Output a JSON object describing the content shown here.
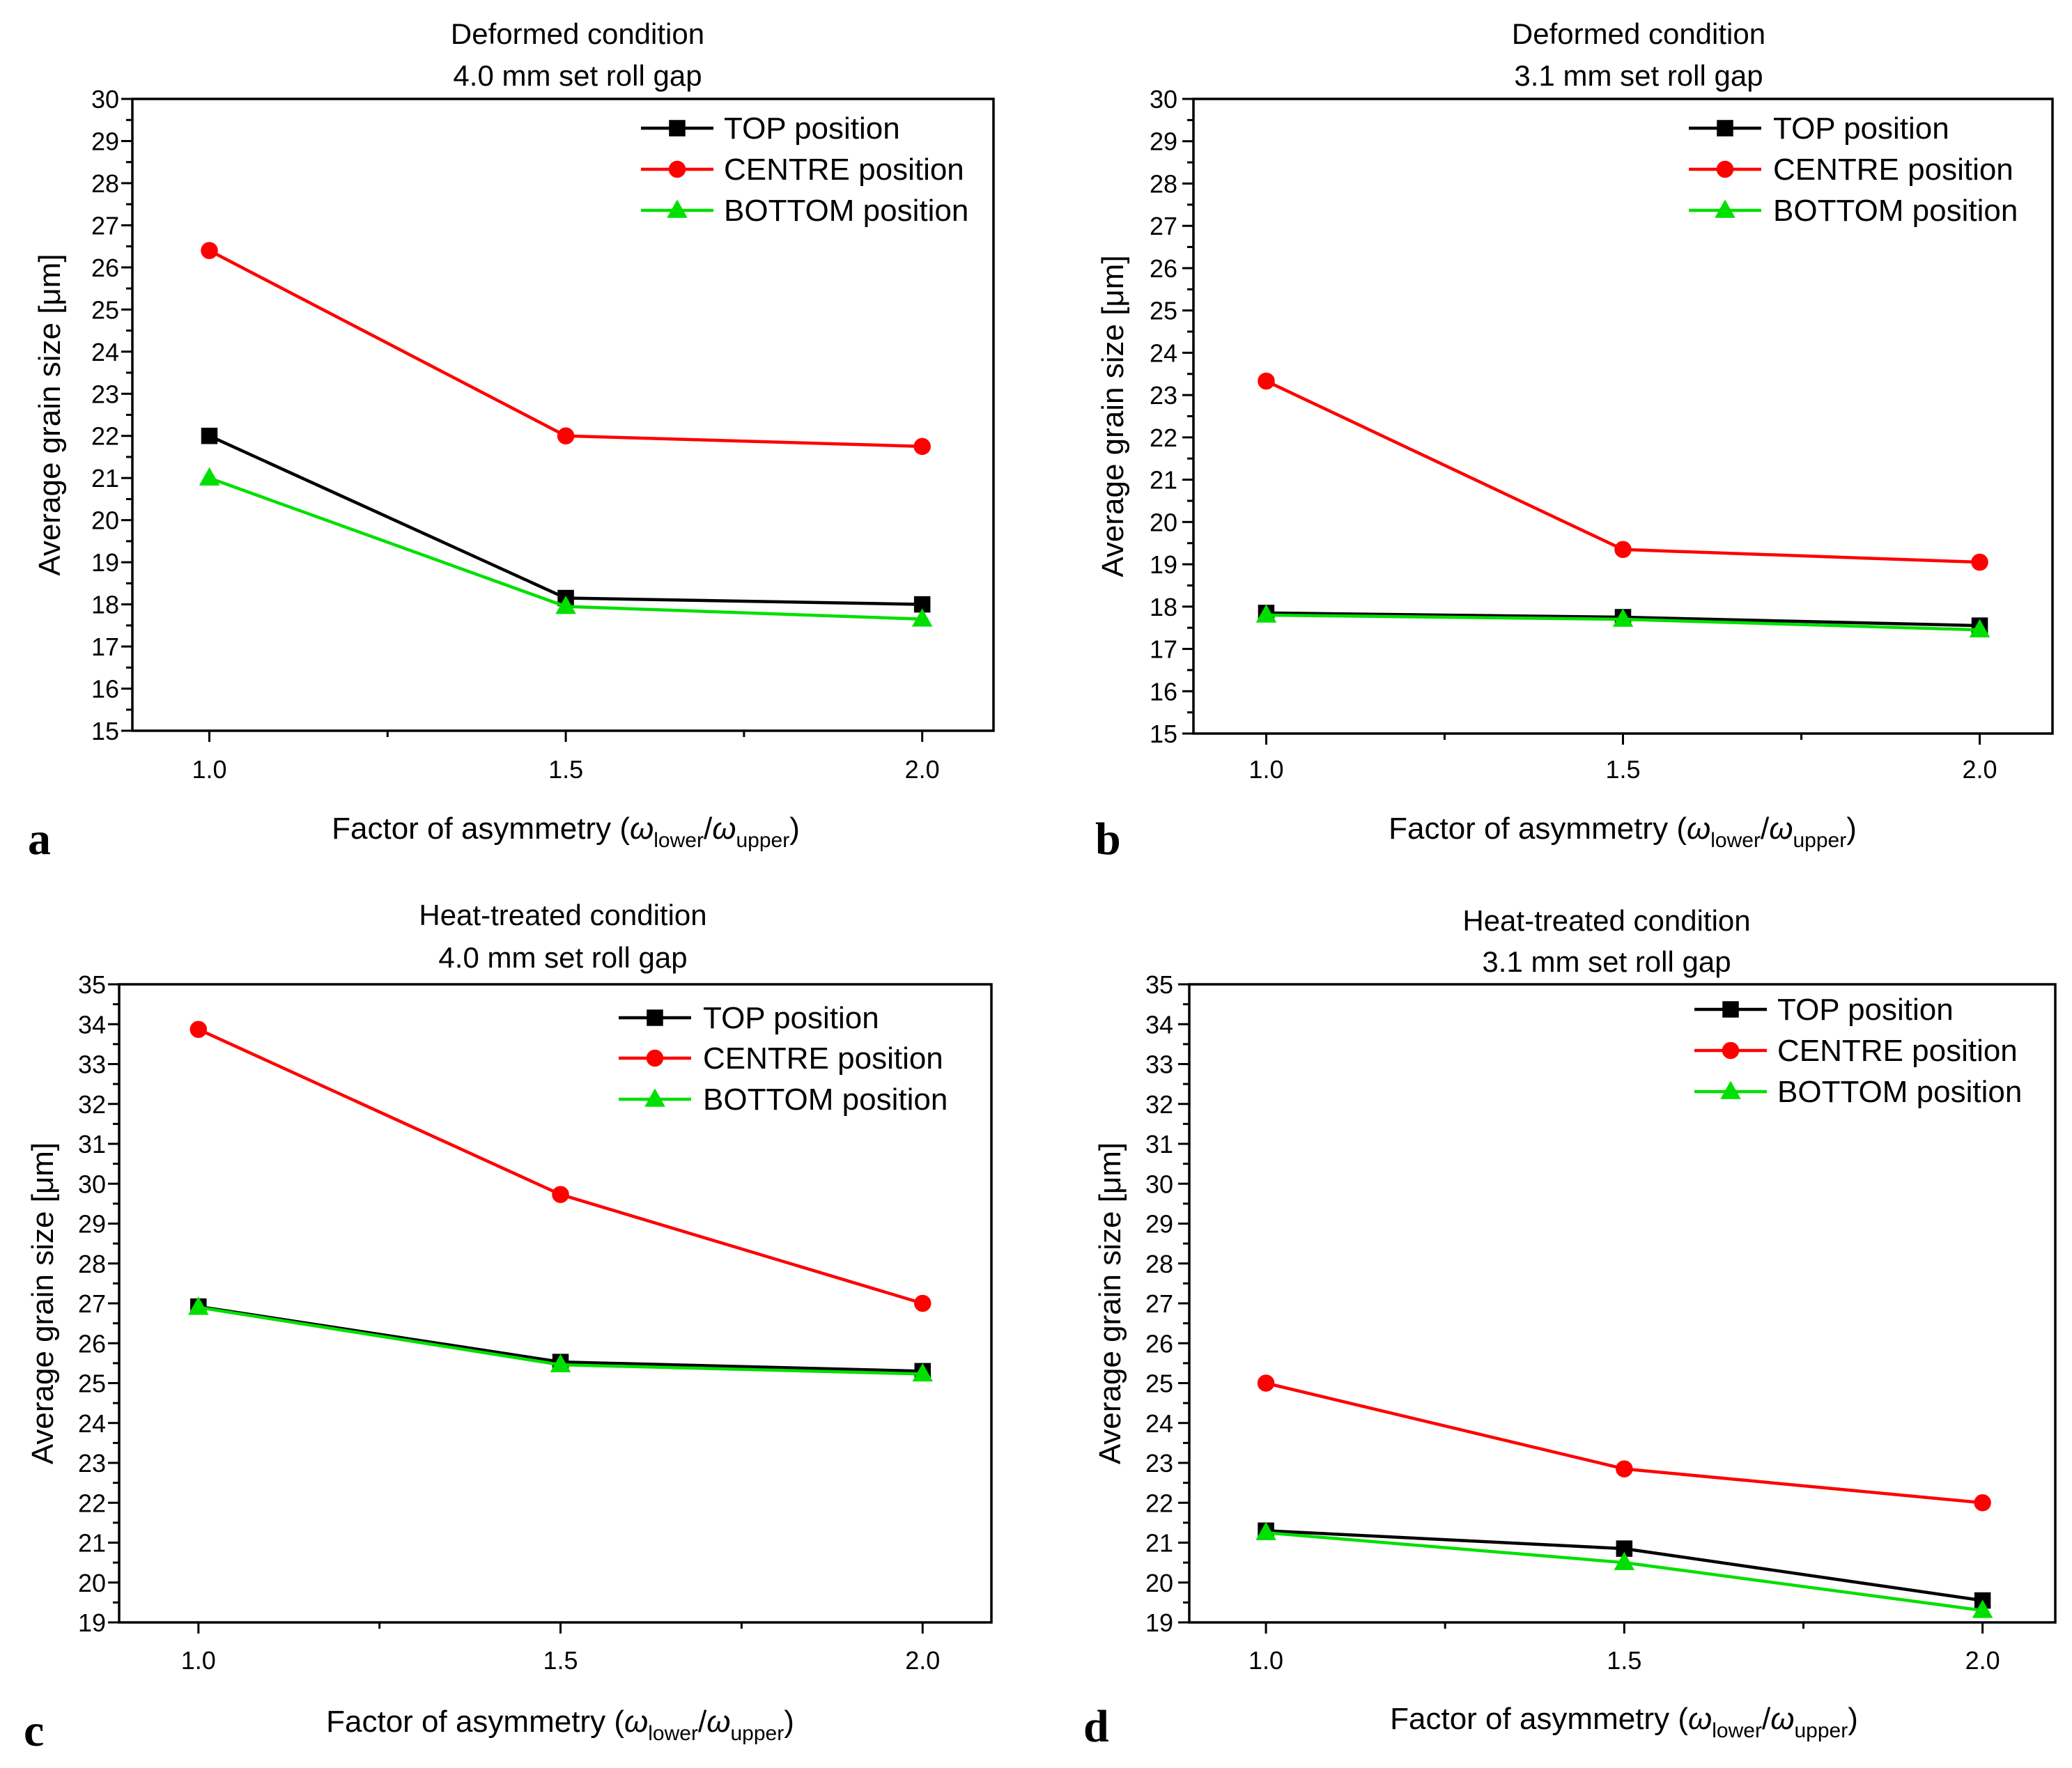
{
  "chart_data": [
    {
      "type": "line",
      "panel": "a",
      "title": [
        "Deformed condition",
        "4.0 mm set roll gap"
      ],
      "ylabel": "Average grain size [μm]",
      "xlabel": {
        "prefix": "Factor of asymmetry (",
        "sym1": "ω",
        "sub1": "lower",
        "slash": "/",
        "sym2": "ω",
        "sub2": "upper",
        "suffix": ")"
      },
      "x": [
        1.0,
        1.5,
        2.0
      ],
      "xticks": [
        "1.0",
        "1.5",
        "2.0"
      ],
      "xlim": [
        0.892,
        2.1
      ],
      "ylim": [
        15,
        30
      ],
      "yticks": [
        15,
        16,
        17,
        18,
        19,
        20,
        21,
        22,
        23,
        24,
        25,
        26,
        27,
        28,
        29,
        30
      ],
      "grid": false,
      "legend": "top-right",
      "series": [
        {
          "name": "TOP position",
          "color": "#000000",
          "marker": "square",
          "values": [
            22.0,
            18.15,
            18.0
          ]
        },
        {
          "name": "CENTRE position",
          "color": "#ff0000",
          "marker": "circle",
          "values": [
            26.4,
            22.0,
            21.75
          ]
        },
        {
          "name": "BOTTOM position",
          "color": "#00e000",
          "marker": "triangle",
          "values": [
            21.0,
            17.95,
            17.65
          ]
        }
      ]
    },
    {
      "type": "line",
      "panel": "b",
      "title": [
        "Deformed condition",
        "3.1 mm set roll gap"
      ],
      "ylabel": "Average grain size [μm]",
      "xlabel": {
        "prefix": "Factor of asymmetry (",
        "sym1": "ω",
        "sub1": "lower",
        "slash": "/",
        "sym2": "ω",
        "sub2": "upper",
        "suffix": ")"
      },
      "x": [
        1.0,
        1.5,
        2.0
      ],
      "xticks": [
        "1.0",
        "1.5",
        "2.0"
      ],
      "xlim": [
        0.898,
        2.102
      ],
      "ylim": [
        15,
        30
      ],
      "yticks": [
        15,
        16,
        17,
        18,
        19,
        20,
        21,
        22,
        23,
        24,
        25,
        26,
        27,
        28,
        29,
        30
      ],
      "grid": false,
      "legend": "top-right",
      "series": [
        {
          "name": "TOP position",
          "color": "#000000",
          "marker": "square",
          "values": [
            17.85,
            17.75,
            17.55
          ]
        },
        {
          "name": "CENTRE position",
          "color": "#ff0000",
          "marker": "circle",
          "values": [
            23.33,
            19.35,
            19.05
          ]
        },
        {
          "name": "BOTTOM position",
          "color": "#00e000",
          "marker": "triangle",
          "values": [
            17.8,
            17.7,
            17.45
          ]
        }
      ]
    },
    {
      "type": "line",
      "panel": "c",
      "title": [
        "Heat-treated condition",
        "4.0 mm set roll gap"
      ],
      "ylabel": "Average grain size [μm]",
      "xlabel": {
        "prefix": "Factor of asymmetry (",
        "sym1": "ω",
        "sub1": "lower",
        "slash": "/",
        "sym2": "ω",
        "sub2": "upper",
        "suffix": ")"
      },
      "x": [
        1.0,
        1.5,
        2.0
      ],
      "xticks": [
        "1.0",
        "1.5",
        "2.0"
      ],
      "xlim": [
        0.8905,
        2.095
      ],
      "ylim": [
        19,
        35
      ],
      "yticks": [
        19,
        20,
        21,
        22,
        23,
        24,
        25,
        26,
        27,
        28,
        29,
        30,
        31,
        32,
        33,
        34,
        35
      ],
      "grid": false,
      "legend": "top-right",
      "series": [
        {
          "name": "TOP position",
          "color": "#000000",
          "marker": "square",
          "values": [
            26.92,
            25.53,
            25.3
          ]
        },
        {
          "name": "CENTRE position",
          "color": "#ff0000",
          "marker": "circle",
          "values": [
            33.87,
            29.73,
            27.0
          ]
        },
        {
          "name": "BOTTOM position",
          "color": "#00e000",
          "marker": "triangle",
          "values": [
            26.9,
            25.46,
            25.23
          ]
        }
      ]
    },
    {
      "type": "line",
      "panel": "d",
      "title": [
        "Heat-treated condition",
        "3.1 mm set roll gap"
      ],
      "ylabel": "Average grain size [μm]",
      "xlabel": {
        "prefix": "Factor of asymmetry (",
        "sym1": "ω",
        "sub1": "lower",
        "slash": "/",
        "sym2": "ω",
        "sub2": "upper",
        "suffix": ")"
      },
      "x": [
        1.0,
        1.5,
        2.0
      ],
      "xticks": [
        "1.0",
        "1.5",
        "2.0"
      ],
      "xlim": [
        0.893,
        2.1015
      ],
      "ylim": [
        19,
        35
      ],
      "yticks": [
        19,
        20,
        21,
        22,
        23,
        24,
        25,
        26,
        27,
        28,
        29,
        30,
        31,
        32,
        33,
        34,
        35
      ],
      "grid": false,
      "legend": "top-right",
      "series": [
        {
          "name": "TOP position",
          "color": "#000000",
          "marker": "square",
          "values": [
            21.3,
            20.85,
            19.55
          ]
        },
        {
          "name": "CENTRE position",
          "color": "#ff0000",
          "marker": "circle",
          "values": [
            25.0,
            22.85,
            22.0
          ]
        },
        {
          "name": "BOTTOM position",
          "color": "#00e000",
          "marker": "triangle",
          "values": [
            21.25,
            20.5,
            19.3
          ]
        }
      ]
    }
  ]
}
